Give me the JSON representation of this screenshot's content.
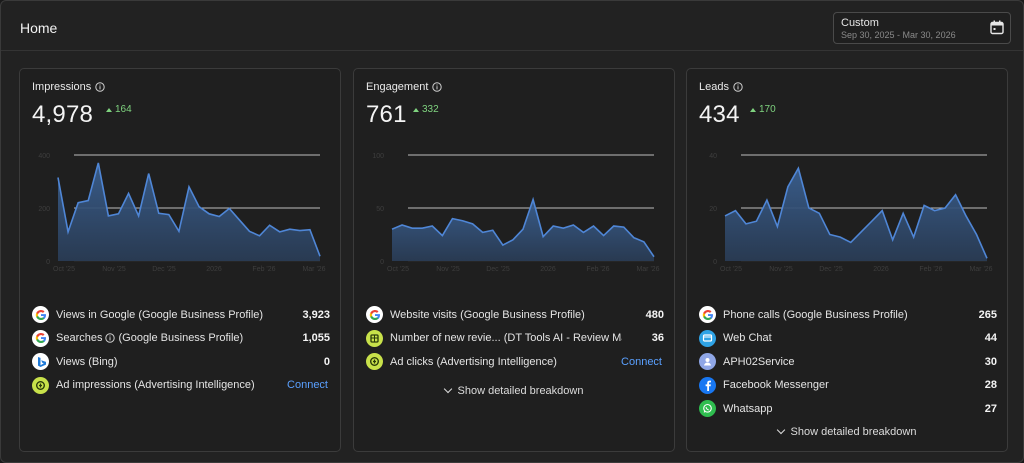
{
  "header": {
    "title": "Home",
    "date_picker": {
      "label": "Custom",
      "range": "Sep 30, 2025 - Mar 30, 2026",
      "icon": "calendar-icon"
    }
  },
  "colors": {
    "background": "#222222",
    "card": "#1f1f1f",
    "series": "#4f86d6",
    "area": "#3a5f8f",
    "positive": "#7fd37f",
    "link": "#5aa0ff"
  },
  "cards": [
    {
      "title": "Impressions",
      "total": "4,978",
      "delta": "164",
      "rows": [
        {
          "icon": "google-icon",
          "label": "Views in Google (Google Business Profile)",
          "value": "3,923"
        },
        {
          "icon": "google-icon",
          "label": "Searches",
          "label_suffix": "(Google Business Profile)",
          "info": true,
          "value": "1,055"
        },
        {
          "icon": "bing-icon",
          "label": "Views (Bing)",
          "value": "0"
        },
        {
          "icon": "advertising-icon",
          "label": "Ad impressions (Advertising Intelligence)",
          "link": "Connect"
        }
      ],
      "breakdown": ""
    },
    {
      "title": "Engagement",
      "total": "761",
      "delta": "332",
      "rows": [
        {
          "icon": "google-icon",
          "label": "Website visits (Google Business Profile)",
          "value": "480"
        },
        {
          "icon": "review-tool-icon",
          "label": "Number of new revie... (DT Tools AI - Review Manag...",
          "value": "36"
        },
        {
          "icon": "advertising-icon",
          "label": "Ad clicks (Advertising Intelligence)",
          "link": "Connect"
        }
      ],
      "breakdown": "Show detailed breakdown"
    },
    {
      "title": "Leads",
      "total": "434",
      "delta": "170",
      "rows": [
        {
          "icon": "google-icon",
          "label": "Phone calls (Google Business Profile)",
          "value": "265"
        },
        {
          "icon": "web-chat-icon",
          "label": "Web Chat",
          "value": "44"
        },
        {
          "icon": "user-icon",
          "label": "APH02Service",
          "value": "30"
        },
        {
          "icon": "facebook-icon",
          "label": "Facebook Messenger",
          "value": "28"
        },
        {
          "icon": "whatsapp-icon",
          "label": "Whatsapp",
          "value": "27"
        }
      ],
      "breakdown": "Show detailed breakdown"
    }
  ],
  "chart_data": [
    {
      "type": "area",
      "title": "Impressions",
      "ylim": [
        0,
        400
      ],
      "yticks": [
        "0",
        "200",
        "400"
      ],
      "xticks": [
        "Oct '25",
        "Nov '25",
        "Dec '25",
        "2026",
        "Feb '26",
        "Mar '26"
      ],
      "grid": true,
      "values": [
        315,
        110,
        220,
        228,
        370,
        170,
        178,
        255,
        170,
        330,
        180,
        175,
        112,
        280,
        205,
        178,
        168,
        198,
        155,
        112,
        95,
        135,
        110,
        120,
        115,
        118,
        18
      ]
    },
    {
      "type": "area",
      "title": "Engagement",
      "ylim": [
        0,
        100
      ],
      "yticks": [
        "0",
        "50",
        "100"
      ],
      "xticks": [
        "Oct '25",
        "Nov '25",
        "Dec '25",
        "2026",
        "Feb '26",
        "Mar '26"
      ],
      "grid": true,
      "values": [
        30,
        34,
        31,
        31,
        33,
        24,
        40,
        38,
        35,
        27,
        29,
        15,
        20,
        30,
        58,
        23,
        33,
        31,
        34,
        27,
        33,
        24,
        33,
        32,
        22,
        18,
        4
      ]
    },
    {
      "type": "area",
      "title": "Leads",
      "ylim": [
        0,
        40
      ],
      "yticks": [
        "0",
        "20",
        "40"
      ],
      "xticks": [
        "Oct '25",
        "Nov '25",
        "Dec '25",
        "2026",
        "Feb '26",
        "Mar '26"
      ],
      "grid": true,
      "values": [
        17,
        19,
        14,
        15,
        23,
        13,
        28,
        35,
        20,
        18,
        10,
        9,
        7,
        11,
        15,
        19,
        8,
        18,
        9,
        21,
        19,
        20,
        25,
        17,
        10,
        1
      ]
    }
  ]
}
